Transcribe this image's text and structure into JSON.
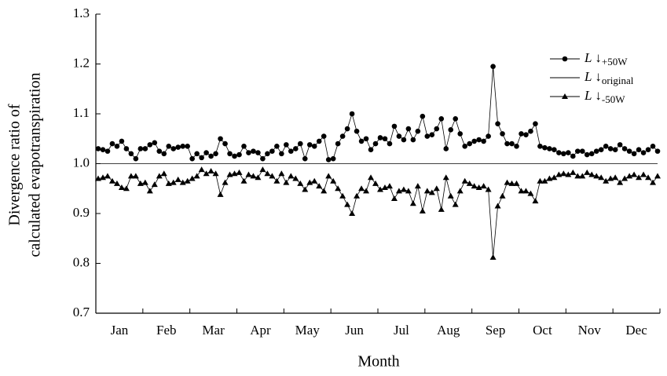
{
  "chart_data": {
    "type": "line",
    "xlabel": "Month",
    "ylabel": [
      "Divergence ratio of",
      "calculated evapotranspiration"
    ],
    "month_labels": [
      "Jan",
      "Feb",
      "Mar",
      "Apr",
      "May",
      "Jun",
      "Jul",
      "Aug",
      "Sep",
      "Oct",
      "Nov",
      "Dec"
    ],
    "ylim": [
      0.7,
      1.3
    ],
    "yticks": [
      0.7,
      0.8,
      0.9,
      {
        "value": 1.0,
        "label": "1.0"
      },
      1.1,
      1.2,
      1.3
    ],
    "legend": "upper right",
    "series": [
      {
        "name": "L ↓",
        "subscript": "+50W",
        "color": "#000000",
        "marker": "circle",
        "values": [
          1.03,
          1.028,
          1.025,
          1.04,
          1.035,
          1.045,
          1.03,
          1.02,
          1.01,
          1.03,
          1.03,
          1.038,
          1.042,
          1.025,
          1.02,
          1.035,
          1.03,
          1.033,
          1.035,
          1.035,
          1.01,
          1.02,
          1.012,
          1.022,
          1.015,
          1.02,
          1.05,
          1.04,
          1.02,
          1.015,
          1.018,
          1.035,
          1.022,
          1.025,
          1.022,
          1.01,
          1.02,
          1.025,
          1.035,
          1.02,
          1.038,
          1.025,
          1.03,
          1.04,
          1.01,
          1.038,
          1.035,
          1.045,
          1.055,
          1.008,
          1.01,
          1.04,
          1.055,
          1.07,
          1.1,
          1.065,
          1.045,
          1.05,
          1.028,
          1.04,
          1.052,
          1.05,
          1.04,
          1.075,
          1.055,
          1.048,
          1.07,
          1.048,
          1.065,
          1.095,
          1.055,
          1.058,
          1.07,
          1.09,
          1.03,
          1.068,
          1.09,
          1.06,
          1.035,
          1.04,
          1.045,
          1.048,
          1.045,
          1.055,
          1.195,
          1.08,
          1.06,
          1.04,
          1.04,
          1.035,
          1.06,
          1.058,
          1.065,
          1.08,
          1.035,
          1.032,
          1.03,
          1.028,
          1.022,
          1.02,
          1.022,
          1.015,
          1.025,
          1.025,
          1.018,
          1.02,
          1.025,
          1.028,
          1.035,
          1.03,
          1.028,
          1.038,
          1.03,
          1.025,
          1.02,
          1.028,
          1.022,
          1.028,
          1.035,
          1.025
        ]
      },
      {
        "name": "L ↓",
        "subscript": "original",
        "color": "#000000",
        "marker": "none",
        "values": [
          1,
          1,
          1,
          1,
          1,
          1,
          1,
          1,
          1,
          1,
          1,
          1,
          1,
          1,
          1,
          1,
          1,
          1,
          1,
          1,
          1,
          1,
          1,
          1,
          1,
          1,
          1,
          1,
          1,
          1,
          1,
          1,
          1,
          1,
          1,
          1,
          1,
          1,
          1,
          1,
          1,
          1,
          1,
          1,
          1,
          1,
          1,
          1,
          1,
          1,
          1,
          1,
          1,
          1,
          1,
          1,
          1,
          1,
          1,
          1,
          1,
          1,
          1,
          1,
          1,
          1,
          1,
          1,
          1,
          1,
          1,
          1,
          1,
          1,
          1,
          1,
          1,
          1,
          1,
          1,
          1,
          1,
          1,
          1,
          1,
          1,
          1,
          1,
          1,
          1,
          1,
          1,
          1,
          1,
          1,
          1,
          1,
          1,
          1,
          1,
          1,
          1,
          1,
          1,
          1,
          1,
          1,
          1,
          1,
          1,
          1,
          1,
          1,
          1,
          1,
          1,
          1,
          1,
          1,
          1
        ]
      },
      {
        "name": "L ↓",
        "subscript": "-50W",
        "color": "#000000",
        "marker": "triangle",
        "values": [
          0.97,
          0.972,
          0.975,
          0.965,
          0.96,
          0.952,
          0.95,
          0.975,
          0.975,
          0.96,
          0.962,
          0.945,
          0.958,
          0.975,
          0.98,
          0.96,
          0.962,
          0.968,
          0.962,
          0.965,
          0.97,
          0.975,
          0.988,
          0.98,
          0.985,
          0.98,
          0.938,
          0.962,
          0.978,
          0.98,
          0.982,
          0.965,
          0.978,
          0.975,
          0.972,
          0.988,
          0.98,
          0.975,
          0.965,
          0.98,
          0.962,
          0.975,
          0.97,
          0.96,
          0.948,
          0.962,
          0.965,
          0.955,
          0.945,
          0.975,
          0.965,
          0.95,
          0.935,
          0.918,
          0.9,
          0.935,
          0.95,
          0.945,
          0.972,
          0.96,
          0.948,
          0.952,
          0.955,
          0.93,
          0.945,
          0.948,
          0.945,
          0.92,
          0.955,
          0.905,
          0.945,
          0.942,
          0.95,
          0.908,
          0.972,
          0.935,
          0.918,
          0.945,
          0.965,
          0.96,
          0.955,
          0.952,
          0.955,
          0.948,
          0.812,
          0.915,
          0.935,
          0.962,
          0.96,
          0.96,
          0.945,
          0.945,
          0.94,
          0.925,
          0.965,
          0.965,
          0.97,
          0.972,
          0.978,
          0.98,
          0.978,
          0.982,
          0.975,
          0.975,
          0.982,
          0.978,
          0.975,
          0.972,
          0.965,
          0.97,
          0.972,
          0.962,
          0.97,
          0.975,
          0.978,
          0.972,
          0.978,
          0.972,
          0.962,
          0.975
        ]
      }
    ]
  }
}
